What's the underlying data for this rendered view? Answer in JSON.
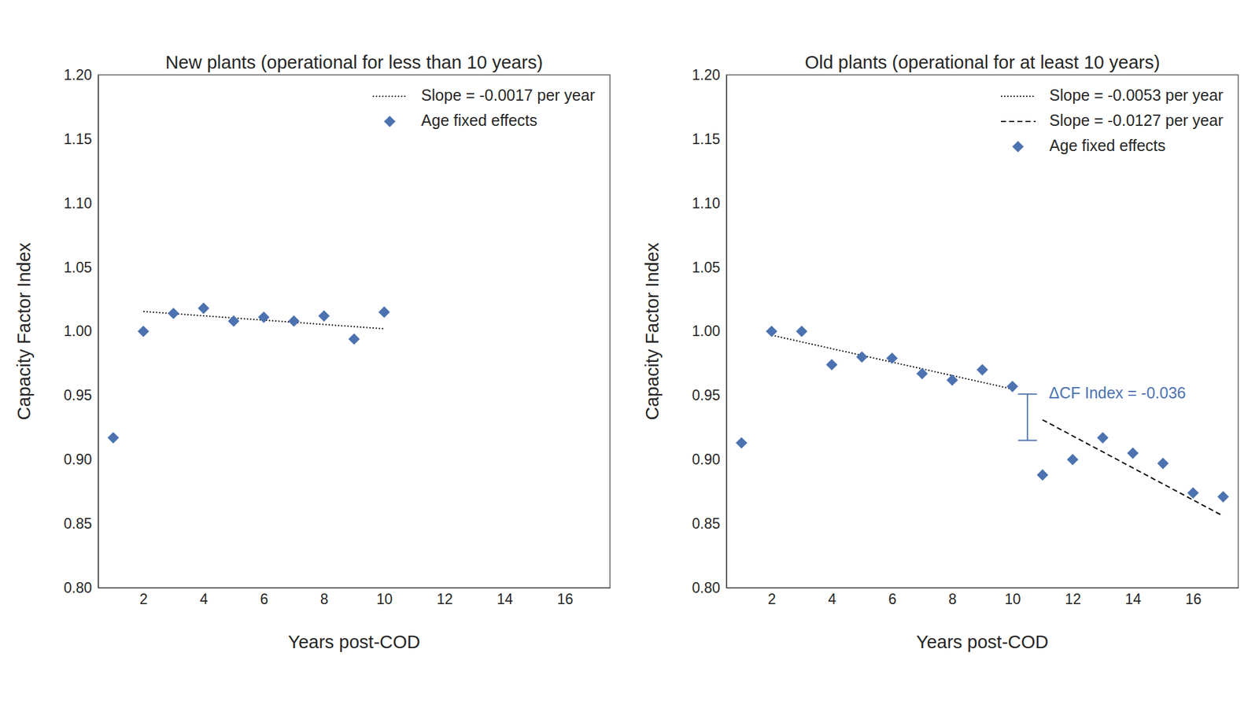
{
  "chart_data": [
    {
      "type": "scatter",
      "title": "New plants (operational for less than 10 years)",
      "x_label": "Years post-COD",
      "y_label": "Capacity Factor Index",
      "xlim": [
        0.5,
        17.5
      ],
      "xticks": [
        2,
        4,
        6,
        8,
        10,
        12,
        14,
        16
      ],
      "ylim": [
        0.8,
        1.2
      ],
      "yticks": [
        {
          "value": 0.8,
          "label": "0.80"
        },
        0.85,
        {
          "value": 0.9,
          "label": "0.90"
        },
        0.95,
        {
          "value": 1.0,
          "label": "1.00"
        },
        1.05,
        {
          "value": 1.1,
          "label": "1.10"
        },
        1.15,
        {
          "value": 1.2,
          "label": "1.20"
        }
      ],
      "grid": false,
      "legend": "upper right",
      "series": [
        {
          "name": "Slope = -0.0017 per year",
          "type": "line",
          "line_style": "dotted",
          "color": "#000000",
          "x": [
            2,
            10
          ],
          "values": [
            1.0155,
            1.002
          ]
        },
        {
          "name": "Age fixed effects",
          "type": "scatter",
          "marker": "diamond",
          "color": "#4c72b0",
          "x": [
            1,
            2,
            3,
            4,
            5,
            6,
            7,
            8,
            9,
            10
          ],
          "values": [
            0.917,
            1.0,
            1.014,
            1.018,
            1.008,
            1.011,
            1.008,
            1.012,
            0.994,
            1.015
          ]
        }
      ]
    },
    {
      "type": "scatter",
      "title": "Old plants (operational for at least 10 years)",
      "x_label": "Years post-COD",
      "y_label": "Capacity Factor Index",
      "xlim": [
        0.5,
        17.5
      ],
      "xticks": [
        2,
        4,
        6,
        8,
        10,
        12,
        14,
        16
      ],
      "ylim": [
        0.8,
        1.2
      ],
      "yticks": [
        {
          "value": 0.8,
          "label": "0.80"
        },
        0.85,
        {
          "value": 0.9,
          "label": "0.90"
        },
        0.95,
        {
          "value": 1.0,
          "label": "1.00"
        },
        1.05,
        {
          "value": 1.1,
          "label": "1.10"
        },
        1.15,
        {
          "value": 1.2,
          "label": "1.20"
        }
      ],
      "grid": false,
      "legend": "upper right",
      "series": [
        {
          "name": "Slope = -0.0053 per year",
          "type": "line",
          "line_style": "dotted",
          "color": "#000000",
          "x": [
            2,
            10
          ],
          "values": [
            0.997,
            0.955
          ]
        },
        {
          "name": "Slope = -0.0127 per year",
          "type": "line",
          "line_style": "dashed",
          "color": "#000000",
          "x": [
            11,
            17
          ],
          "values": [
            0.931,
            0.856
          ]
        },
        {
          "name": "Age fixed effects",
          "type": "scatter",
          "marker": "diamond",
          "color": "#4c72b0",
          "x": [
            1,
            2,
            3,
            4,
            5,
            6,
            7,
            8,
            9,
            10,
            11,
            12,
            13,
            14,
            15,
            16,
            17
          ],
          "values": [
            0.913,
            1.0,
            1.0,
            0.974,
            0.98,
            0.979,
            0.967,
            0.962,
            0.97,
            0.957,
            0.888,
            0.9,
            0.917,
            0.905,
            0.897,
            0.874,
            0.871
          ]
        }
      ],
      "annotations": [
        {
          "text": "ΔCF Index = -0.036",
          "x": 10.5,
          "y_top": 0.951,
          "y_bottom": 0.915
        }
      ]
    }
  ]
}
